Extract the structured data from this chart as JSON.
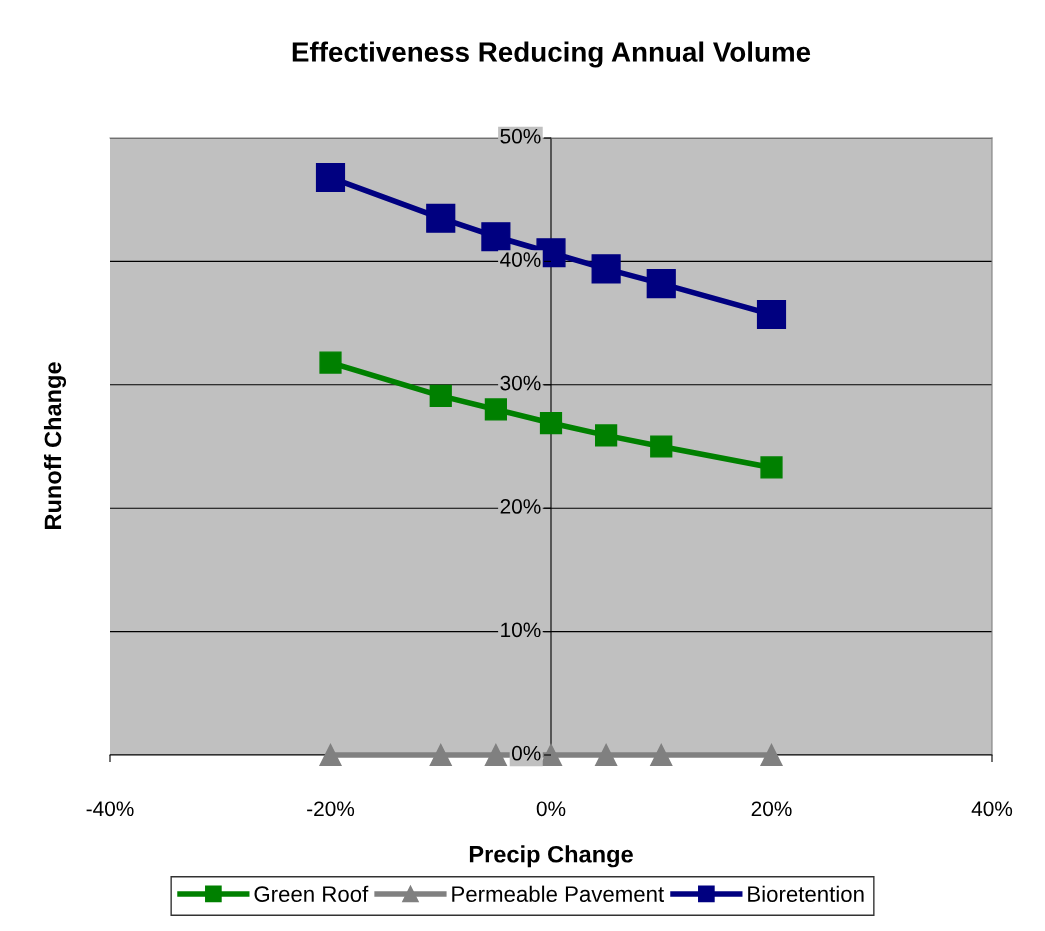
{
  "chart_data": {
    "type": "line",
    "title": "Effectiveness Reducing Annual Volume",
    "xlabel": "Precip Change",
    "ylabel": "Runoff Change",
    "x": [
      -20,
      -10,
      -5,
      0,
      5,
      10,
      20
    ],
    "series": [
      {
        "name": "Green Roof",
        "color": "#008000",
        "marker": "square",
        "values": [
          31.8,
          29.1,
          28.0,
          26.9,
          25.9,
          25.0,
          23.3
        ]
      },
      {
        "name": "Permeable Pavement",
        "color": "#808080",
        "marker": "triangle",
        "values": [
          0,
          0,
          0,
          0,
          0,
          0,
          0
        ]
      },
      {
        "name": "Bioretention",
        "color": "#000080",
        "marker": "square",
        "values": [
          46.8,
          43.5,
          42.0,
          40.7,
          39.4,
          38.2,
          35.7
        ]
      }
    ],
    "xlim": [
      -40,
      40
    ],
    "xticks": [
      {
        "value": -40,
        "label": "-40%"
      },
      {
        "value": -20,
        "label": "-20%"
      },
      {
        "value": 0,
        "label": "0%"
      },
      {
        "value": 20,
        "label": "20%"
      },
      {
        "value": 40,
        "label": "40%"
      }
    ],
    "ylim": [
      0,
      50
    ],
    "yticks": [
      {
        "value": 0,
        "label": "0%"
      },
      {
        "value": 10,
        "label": "10%"
      },
      {
        "value": 20,
        "label": "20%"
      },
      {
        "value": 30,
        "label": "30%"
      },
      {
        "value": 40,
        "label": "40%"
      },
      {
        "value": 50,
        "label": "50%"
      }
    ],
    "grid": "y",
    "legend": "bottom",
    "line_style": "solid"
  }
}
